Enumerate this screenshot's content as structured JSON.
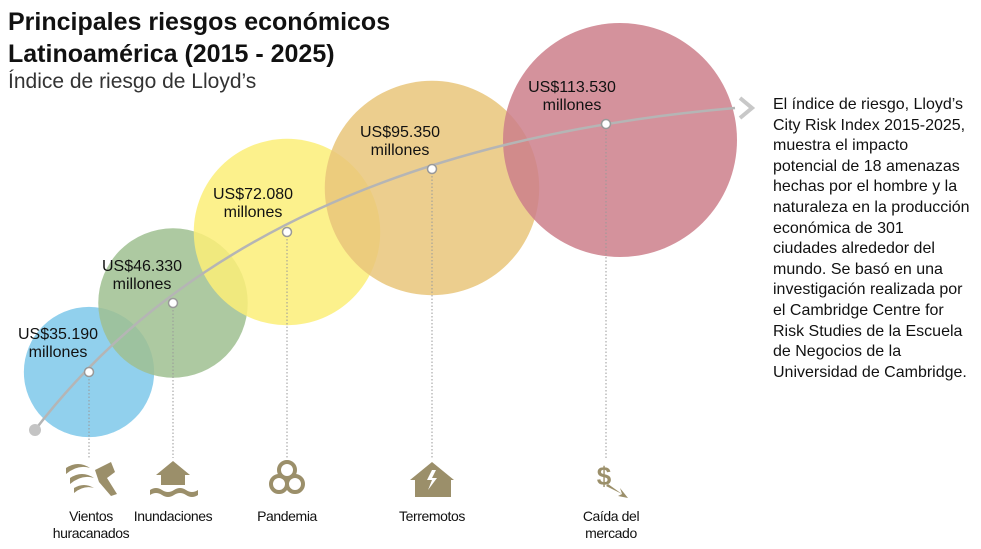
{
  "chart_data": {
    "type": "bubble",
    "title": "Principales riesgos económicos Latinoamérica (2015 - 2025)",
    "subtitle": "Índice de riesgo de Lloyd’s",
    "categories": [
      "Vientos huracanados",
      "Inundaciones",
      "Pandemia",
      "Terremotos",
      "Caída del mercado"
    ],
    "values": [
      35190,
      46330,
      72080,
      95350,
      113530
    ],
    "value_labels": [
      "US$35.190 millones",
      "US$46.330 millones",
      "US$72.080 millones",
      "US$95.350 millones",
      "US$113.530 millones"
    ],
    "colors": [
      "#7ec8ea",
      "#9fc090",
      "#fbef78",
      "#e9c57a",
      "#cd7f8b"
    ],
    "note": "El índice de riesgo, Lloyd’s City Risk Index 2015-2025, muestra el impacto potencial de 18 amenazas hechas por el hombre y la naturaleza en la producción económica de 301 ciudades alrededor del mundo. Se basó en una investigación realizada por el Cambridge Centre for Risk Studies de la Escuela de Negocios de la Universidad de Cambridge."
  }
}
